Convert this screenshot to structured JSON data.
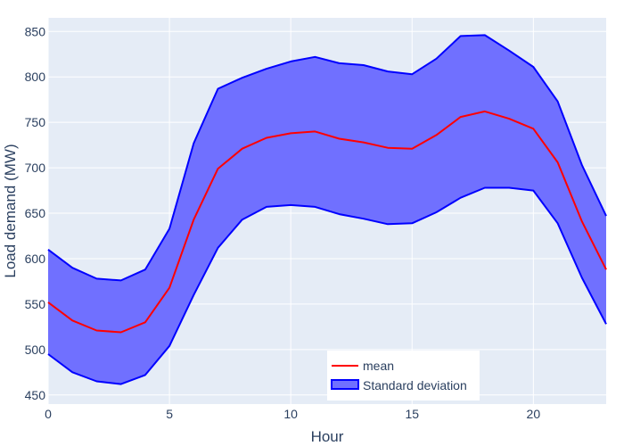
{
  "chart_data": {
    "type": "line",
    "title": "",
    "xlabel": "Hour",
    "ylabel": "Load demand (MW)",
    "xlim": [
      0,
      23
    ],
    "ylim": [
      440,
      865
    ],
    "x_ticks": [
      0,
      5,
      10,
      15,
      20
    ],
    "y_ticks": [
      450,
      500,
      550,
      600,
      650,
      700,
      750,
      800,
      850
    ],
    "grid": true,
    "legend_position": "bottom-center",
    "colors": {
      "plot_background": "#e5ecf6",
      "grid": "#ffffff",
      "mean_line": "#ff0000",
      "band_line": "#0000ff",
      "band_fill": "#7070ff"
    },
    "x": [
      0,
      1,
      2,
      3,
      4,
      5,
      6,
      7,
      8,
      9,
      10,
      11,
      12,
      13,
      14,
      15,
      16,
      17,
      18,
      19,
      20,
      21,
      22,
      23
    ],
    "series": [
      {
        "name": "mean",
        "kind": "line",
        "values": [
          552,
          532,
          521,
          519,
          530,
          568,
          643,
          699,
          721,
          733,
          738,
          740,
          732,
          728,
          722,
          721,
          736,
          756,
          762,
          754,
          743,
          706,
          641,
          588
        ]
      },
      {
        "name": "Standard deviation",
        "kind": "band",
        "upper": [
          610,
          590,
          578,
          576,
          588,
          633,
          727,
          787,
          799,
          809,
          817,
          822,
          815,
          813,
          806,
          803,
          820,
          845,
          846,
          829,
          811,
          773,
          703,
          647
        ],
        "lower": [
          495,
          475,
          465,
          462,
          472,
          504,
          560,
          612,
          643,
          657,
          659,
          657,
          649,
          644,
          638,
          639,
          651,
          667,
          678,
          678,
          675,
          639,
          579,
          528
        ]
      }
    ]
  }
}
